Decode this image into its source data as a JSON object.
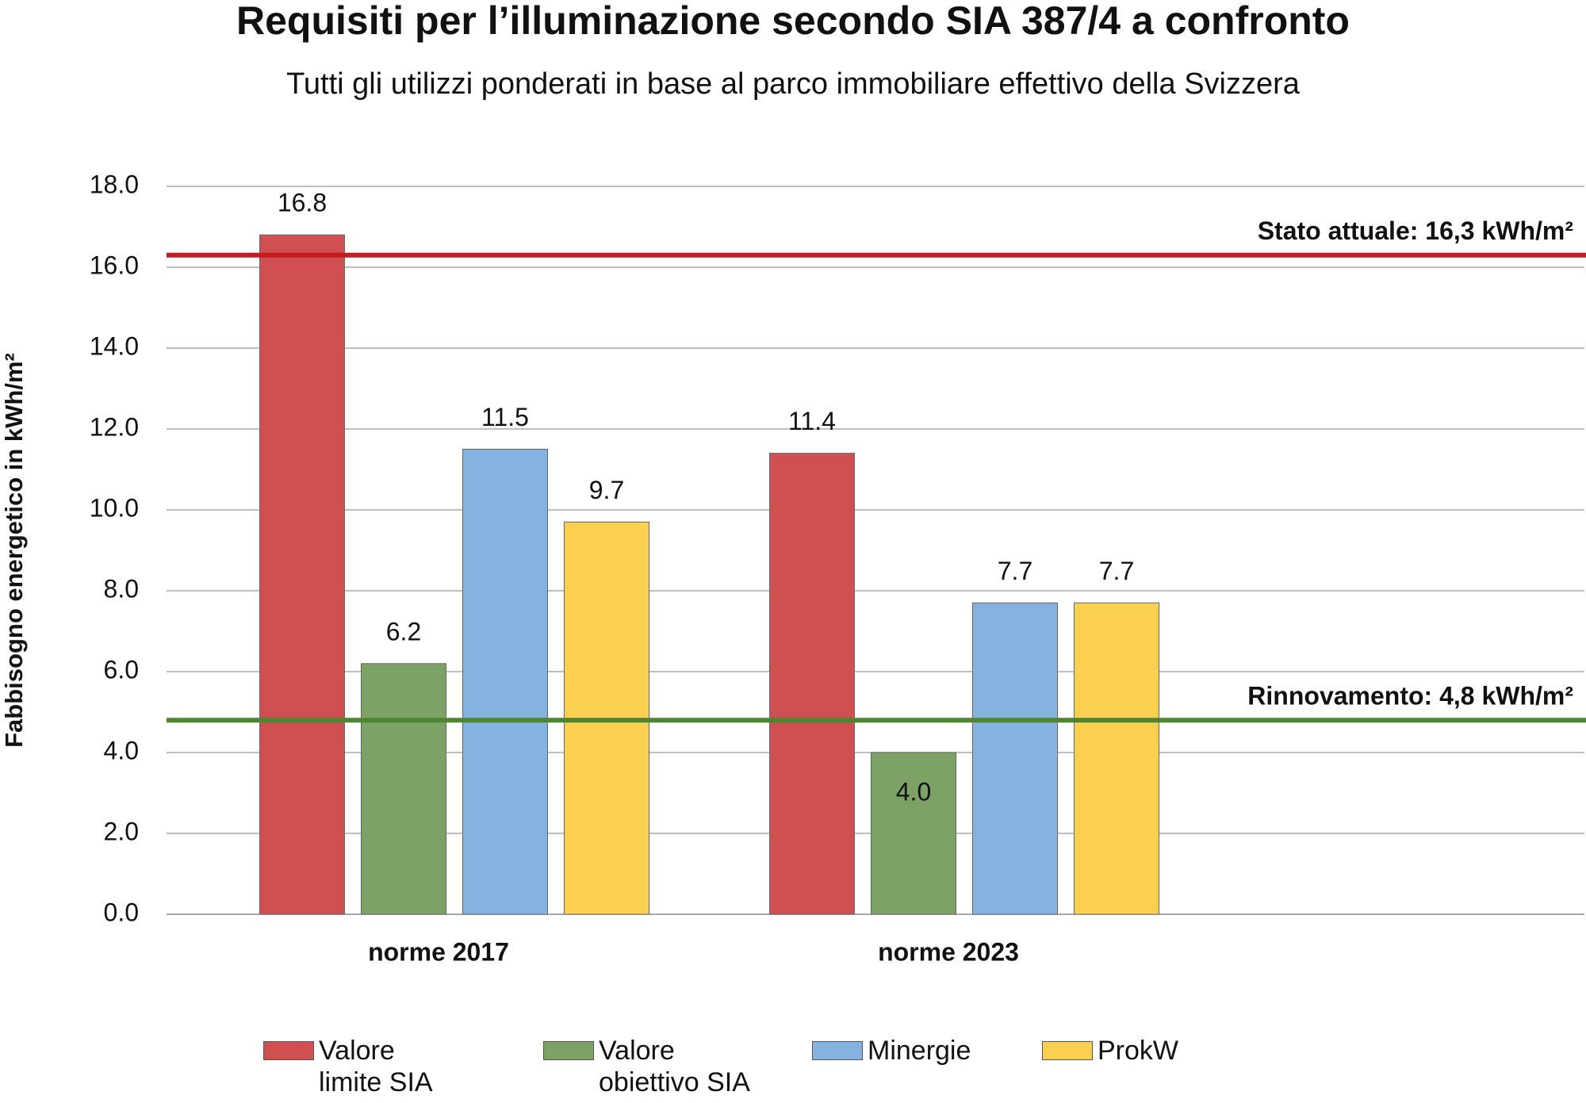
{
  "chart_data": {
    "type": "bar",
    "title": "Requisiti per l’illuminazione secondo SIA 387/4 a confronto",
    "subtitle": "Tutti gli utilizzi ponderati in base al parco immobiliare effettivo della Svizzera",
    "y_label": "Fabbisogno energetico in kWh/m²",
    "categories": [
      "norme 2017",
      "norme 2023"
    ],
    "series": [
      {
        "name": "Valore limite SIA",
        "color": "#d05052",
        "values": [
          16.8,
          11.4
        ],
        "value_labels": [
          "16.8",
          "11.4"
        ]
      },
      {
        "name": "Valore obiettivo SIA",
        "color": "#7ca266",
        "values": [
          6.2,
          4.0
        ],
        "value_labels": [
          "6.2",
          "4.0"
        ]
      },
      {
        "name": "Minergie",
        "color": "#84b3df",
        "values": [
          11.5,
          7.7
        ],
        "value_labels": [
          "11.5",
          "7.7"
        ]
      },
      {
        "name": "ProkW",
        "color": "#fbcf50",
        "values": [
          9.7,
          7.7
        ],
        "value_labels": [
          "9.7",
          "7.7"
        ]
      }
    ],
    "reference_lines": [
      {
        "value": 16.3,
        "label": "Stato attuale: 16,3 kWh/m²",
        "color": "#c8191f"
      },
      {
        "value": 4.8,
        "label": "Rinnovamento: 4,8 kWh/m²",
        "color": "#4e8530"
      }
    ],
    "ylim": [
      0,
      18
    ],
    "yticks": [
      {
        "value": 0,
        "label": "0.0"
      },
      {
        "value": 2,
        "label": "2.0"
      },
      {
        "value": 4,
        "label": "4.0"
      },
      {
        "value": 6,
        "label": "6.0"
      },
      {
        "value": 8,
        "label": "8.0"
      },
      {
        "value": 10,
        "label": "10.0"
      },
      {
        "value": 12,
        "label": "12.0"
      },
      {
        "value": 14,
        "label": "14.0"
      },
      {
        "value": 16,
        "label": "16.0"
      },
      {
        "value": 18,
        "label": "18.0"
      }
    ],
    "grid": true,
    "legend": "bottom"
  }
}
